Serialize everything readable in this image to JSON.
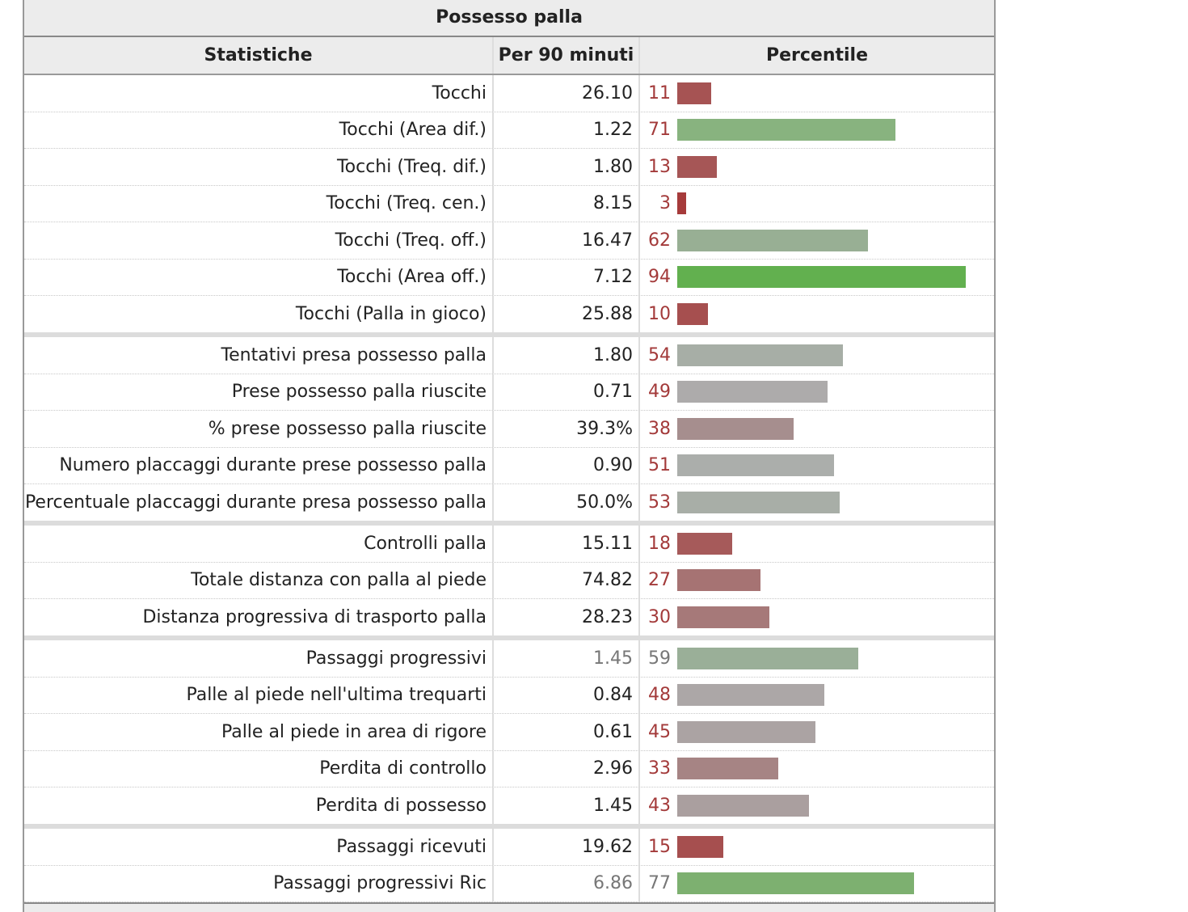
{
  "table": {
    "caption": "Possesso palla",
    "headers": {
      "stat": "Statistiche",
      "per90": "Per 90 minuti",
      "percentile": "Percentile"
    },
    "bar_scale_max": 100,
    "groups": [
      [
        {
          "stat": "Tocchi",
          "per90": "26.10",
          "percentile": 11,
          "bar_color": "#a65353"
        },
        {
          "stat": "Tocchi (Area dif.)",
          "per90": "1.22",
          "percentile": 71,
          "bar_color": "#88b37f"
        },
        {
          "stat": "Tocchi (Treq. dif.)",
          "per90": "1.80",
          "percentile": 13,
          "bar_color": "#a65656"
        },
        {
          "stat": "Tocchi (Treq. cen.)",
          "per90": "8.15",
          "percentile": 3,
          "bar_color": "#a63b3b"
        },
        {
          "stat": "Tocchi (Treq. off.)",
          "per90": "16.47",
          "percentile": 62,
          "bar_color": "#98af94"
        },
        {
          "stat": "Tocchi (Area off.)",
          "per90": "7.12",
          "percentile": 94,
          "bar_color": "#62b04f"
        },
        {
          "stat": "Tocchi (Palla in gioco)",
          "per90": "25.88",
          "percentile": 10,
          "bar_color": "#a64f4f"
        }
      ],
      [
        {
          "stat": "Tentativi presa possesso palla",
          "per90": "1.80",
          "percentile": 54,
          "bar_color": "#a7aea6"
        },
        {
          "stat": "Prese possesso palla riuscite",
          "per90": "0.71",
          "percentile": 49,
          "bar_color": "#adabab"
        },
        {
          "stat": "% prese possesso palla riuscite",
          "per90": "39.3%",
          "percentile": 38,
          "bar_color": "#a68e8e"
        },
        {
          "stat": "Numero placcaggi durante prese possesso palla",
          "per90": "0.90",
          "percentile": 51,
          "bar_color": "#abaeab"
        },
        {
          "stat": "Percentuale placcaggi durante presa possesso palla",
          "per90": "50.0%",
          "percentile": 53,
          "bar_color": "#a8aea7"
        }
      ],
      [
        {
          "stat": "Controlli palla",
          "per90": "15.11",
          "percentile": 18,
          "bar_color": "#a65a5a"
        },
        {
          "stat": "Totale distanza con palla al piede",
          "per90": "74.82",
          "percentile": 27,
          "bar_color": "#a67373"
        },
        {
          "stat": "Distanza progressiva di trasporto palla",
          "per90": "28.23",
          "percentile": 30,
          "bar_color": "#a67979"
        }
      ],
      [
        {
          "stat": "Passaggi progressivi",
          "per90": "1.45",
          "percentile": 59,
          "bar_color": "#9aaf98",
          "muted": true
        },
        {
          "stat": "Palle al piede nell'ultima trequarti",
          "per90": "0.84",
          "percentile": 48,
          "bar_color": "#aca7a7"
        },
        {
          "stat": "Palle al piede in area di rigore",
          "per90": "0.61",
          "percentile": 45,
          "bar_color": "#aba3a3"
        },
        {
          "stat": "Perdita di controllo",
          "per90": "2.96",
          "percentile": 33,
          "bar_color": "#a68484"
        },
        {
          "stat": "Perdita di possesso",
          "per90": "1.45",
          "percentile": 43,
          "bar_color": "#aa9f9f"
        }
      ],
      [
        {
          "stat": "Passaggi ricevuti",
          "per90": "19.62",
          "percentile": 15,
          "bar_color": "#a64f4f"
        },
        {
          "stat": "Passaggi progressivi Ric",
          "per90": "6.86",
          "percentile": 77,
          "bar_color": "#7db070",
          "muted": true
        }
      ]
    ]
  }
}
